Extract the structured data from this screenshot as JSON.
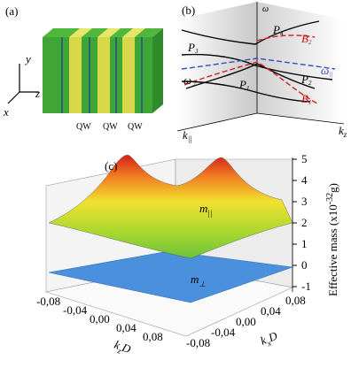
{
  "panel_a": {
    "label": "(a)",
    "axes": [
      "y",
      "z",
      "x"
    ],
    "layers": [
      "QW",
      "QW",
      "QW"
    ]
  },
  "panel_b": {
    "label": "(b)",
    "y_axis": "ω",
    "k_parallel": {
      "base": "k",
      "sub": "||"
    },
    "k_z": {
      "base": "k",
      "sub": "z"
    },
    "curve_labels": [
      {
        "base": "P",
        "sub": "4"
      },
      {
        "base": "B",
        "sub": "2"
      },
      {
        "base": "P",
        "sub": "3"
      },
      {
        "base": "ω",
        "sub": "||"
      },
      {
        "base": "ω",
        "sub": "⊥"
      },
      {
        "base": "P",
        "sub": "1"
      },
      {
        "base": "P",
        "sub": "2"
      },
      {
        "base": "B",
        "sub": "1"
      }
    ]
  },
  "panel_c": {
    "label": "(c)",
    "m_parallel": {
      "base": "m",
      "sub": "||"
    },
    "m_perp": {
      "base": "m",
      "sub": "⊥"
    },
    "z_title": {
      "pre": "Effective mass (x10",
      "sup": "-32",
      "post": "g)"
    },
    "z_ticks": [
      "5",
      "4",
      "3",
      "2",
      "1",
      "0",
      "-1"
    ],
    "kz_label": {
      "base": "k",
      "sub": "z",
      "post": "D"
    },
    "kx_label": {
      "base": "k",
      "sub": "x",
      "post": "D"
    },
    "kz_ticks": [
      "-0,08",
      "-0,04",
      "0,00",
      "0,04",
      "0,08"
    ],
    "kx_ticks": [
      "-0,08",
      "-0,04",
      "0,00",
      "0,04",
      "0,08"
    ]
  }
}
